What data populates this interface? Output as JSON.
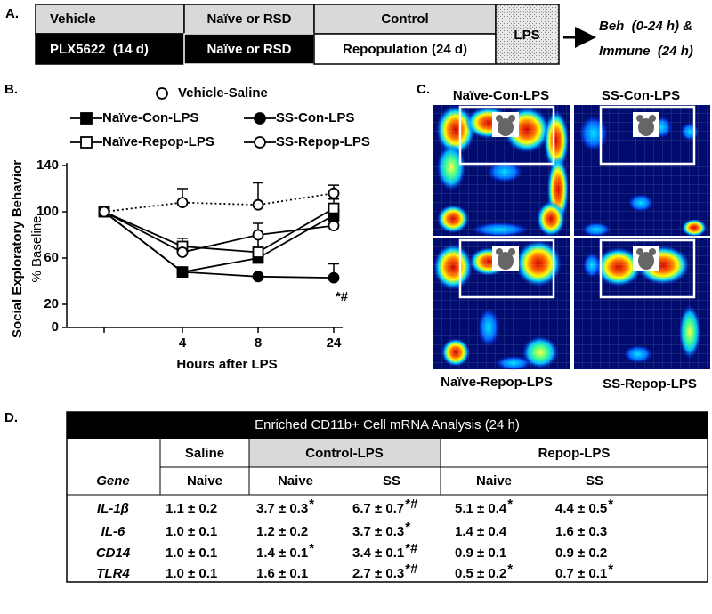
{
  "panel_a": {
    "label": "A.",
    "row1": [
      "Vehicle",
      "Naïve or RSD",
      "Control"
    ],
    "row2": [
      "PLX5622  (14 d)",
      "Naïve or RSD",
      "Repopulation (24 d)"
    ],
    "lps": "LPS",
    "outcome": [
      "Beh  (0-24 h) &",
      "Immune  (24 h)"
    ]
  },
  "chart_data": {
    "type": "line",
    "label": "B.",
    "y_label": "Social Exploratory Behavior",
    "y_sublabel": "% Baseline",
    "x_label": "Hours after LPS",
    "categories": [
      null,
      "4",
      "8",
      "24"
    ],
    "ylim": [
      0,
      140
    ],
    "yticks": [
      0,
      20,
      60,
      100,
      140
    ],
    "annotation": "*#",
    "series": [
      {
        "name": "Vehicle-Saline",
        "color": "#000000",
        "marker": "circle",
        "filled": false,
        "line_style": "dotted",
        "values": [
          100,
          108,
          106,
          116
        ],
        "errors": [
          null,
          12,
          19,
          7
        ]
      },
      {
        "name": "Naïve-Con-LPS",
        "color": "#000000",
        "marker": "square",
        "filled": true,
        "line_style": "solid",
        "values": [
          100,
          48,
          60,
          97
        ],
        "errors": [
          null,
          3,
          8,
          8
        ]
      },
      {
        "name": "SS-Con-LPS",
        "color": "#000000",
        "marker": "circle",
        "filled": true,
        "line_style": "solid",
        "values": [
          100,
          48,
          44,
          43
        ],
        "errors": [
          null,
          2,
          2,
          12
        ]
      },
      {
        "name": "Naïve-Repop-LPS",
        "color": "#000000",
        "marker": "square",
        "filled": false,
        "line_style": "solid",
        "values": [
          100,
          70,
          65,
          103
        ],
        "errors": [
          null,
          7,
          16,
          8
        ]
      },
      {
        "name": "SS-Repop-LPS",
        "color": "#000000",
        "marker": "circle",
        "filled": false,
        "line_style": "solid",
        "values": [
          100,
          65,
          80,
          88
        ],
        "errors": [
          null,
          4,
          10,
          4
        ]
      }
    ]
  },
  "panel_c": {
    "label": "C.",
    "panels": [
      "Naïve-Con-LPS",
      "SS-Con-LPS",
      "Naïve-Repop-LPS",
      "SS-Repop-LPS"
    ]
  },
  "panel_d": {
    "label": "D.",
    "title": "Enriched CD11b+ Cell mRNA Analysis (24 h)",
    "groups": [
      "Saline",
      "Control-LPS",
      "Repop-LPS"
    ],
    "columns": [
      "Gene",
      "Naive",
      "Naive",
      "SS",
      "Naive",
      "SS"
    ],
    "rows": [
      {
        "gene": "IL-1β",
        "cells": [
          {
            "text": "1.1 ± 0.2"
          },
          {
            "text": "3.7 ± 0.3",
            "sig": "*"
          },
          {
            "text": "6.7 ± 0.7",
            "sig": "*#"
          },
          {
            "text": "5.1 ± 0.4",
            "sig": "*"
          },
          {
            "text": "4.4  ± 0.5",
            "sig": "*"
          }
        ]
      },
      {
        "gene": "IL-6",
        "cells": [
          {
            "text": "1.0 ± 0.1"
          },
          {
            "text": "1.2 ± 0.2"
          },
          {
            "text": "3.7 ± 0.3",
            "sig": "*"
          },
          {
            "text": "1.4 ± 0.4"
          },
          {
            "text": "1.6 ± 0.3"
          }
        ]
      },
      {
        "gene": "CD14",
        "cells": [
          {
            "text": "1.0 ± 0.1"
          },
          {
            "text": "1.4 ± 0.1",
            "sig": "*"
          },
          {
            "text": "3.4 ± 0.1",
            "sig": "*#"
          },
          {
            "text": "0.9 ± 0.1"
          },
          {
            "text": "0.9 ± 0.2"
          }
        ]
      },
      {
        "gene": "TLR4",
        "cells": [
          {
            "text": "1.0 ± 0.1"
          },
          {
            "text": "1.6 ± 0.1"
          },
          {
            "text": "2.7 ± 0.3",
            "sig": "*#"
          },
          {
            "text": "0.5 ± 0.2",
            "sig": "*"
          },
          {
            "text": "0.7 ± 0.1",
            "sig": "*"
          }
        ]
      }
    ]
  }
}
